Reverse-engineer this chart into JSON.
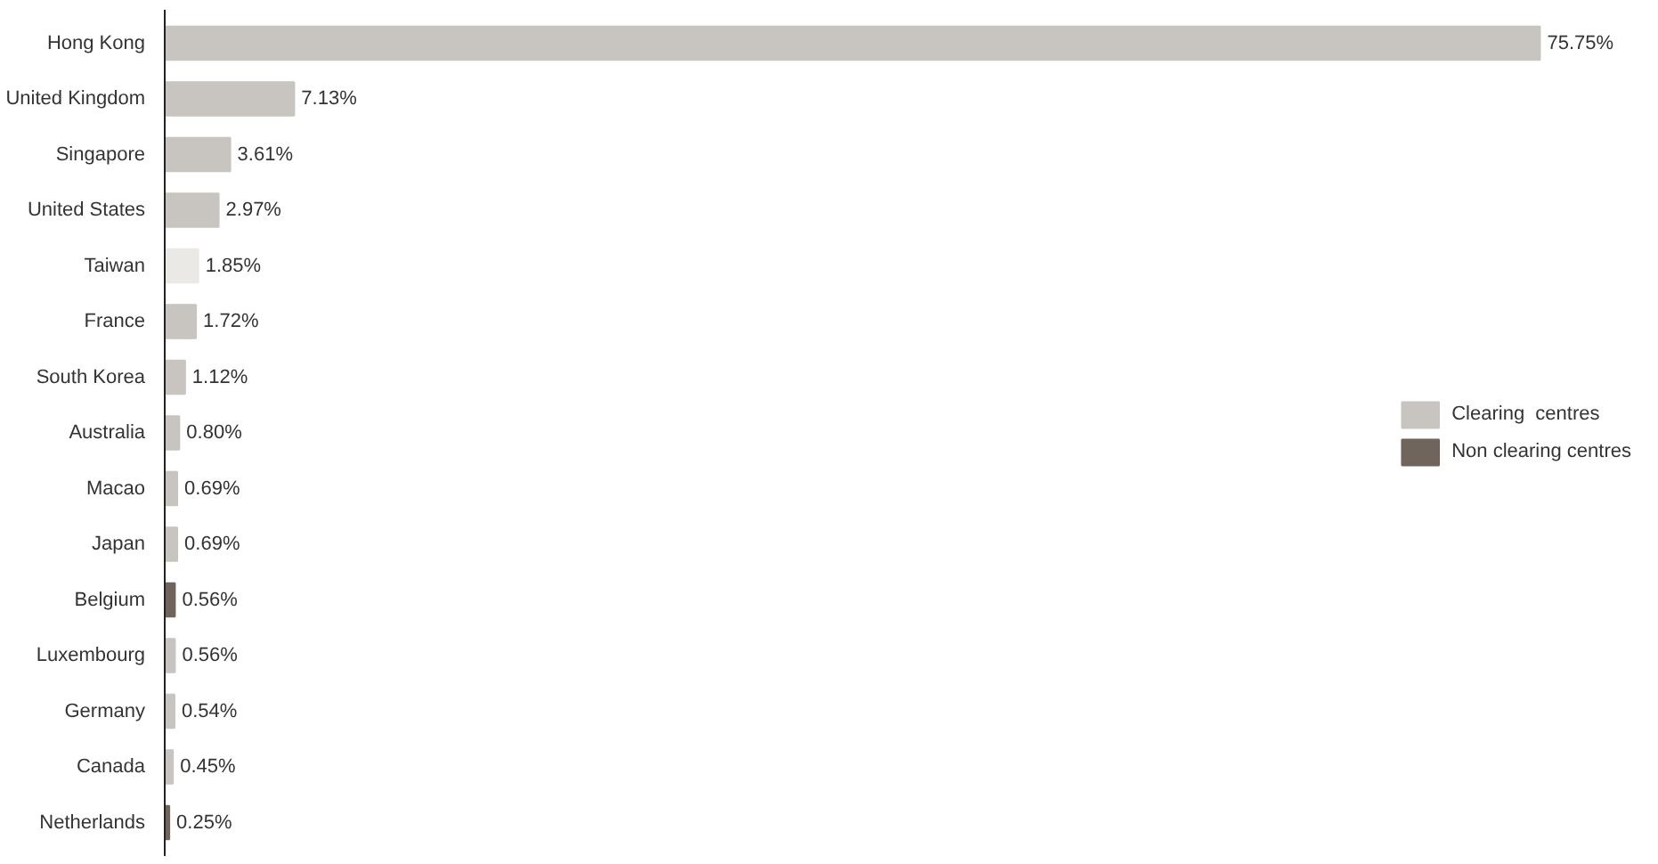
{
  "chart_data": {
    "type": "bar",
    "orientation": "horizontal",
    "categories": [
      "Hong Kong",
      "United Kingdom",
      "Singapore",
      "United States",
      "Taiwan",
      "France",
      "South Korea",
      "Australia",
      "Macao",
      "Japan",
      "Belgium",
      "Luxembourg",
      "Germany",
      "Canada",
      "Netherlands"
    ],
    "series": [
      {
        "name": "Clearing  centres",
        "color": "#c8c4bf",
        "values": [
          75.75,
          7.13,
          3.61,
          2.97,
          null,
          1.72,
          1.12,
          0.8,
          0.69,
          0.69,
          null,
          0.56,
          0.54,
          0.45,
          null
        ],
        "value_labels": [
          "75.75%",
          "7.13%",
          "3.61%",
          "2.97%",
          null,
          "1.72%",
          "1.12%",
          "0.80%",
          "0.69%",
          "0.69%",
          null,
          "0.56%",
          "0.54%",
          "0.45%",
          null
        ]
      },
      {
        "name": "Non clearing centres",
        "color": "#6f655d",
        "values": [
          null,
          null,
          null,
          null,
          null,
          null,
          null,
          null,
          null,
          null,
          0.56,
          null,
          null,
          null,
          0.25
        ],
        "value_labels": [
          null,
          null,
          null,
          null,
          null,
          null,
          null,
          null,
          null,
          null,
          "0.56%",
          null,
          null,
          null,
          "0.25%"
        ]
      },
      {
        "color": "#ebe9e6",
        "values": [
          null,
          null,
          null,
          null,
          1.85,
          null,
          null,
          null,
          null,
          null,
          null,
          null,
          null,
          null,
          null
        ],
        "value_labels": [
          null,
          null,
          null,
          null,
          "1.85%",
          null,
          null,
          null,
          null,
          null,
          null,
          null,
          null,
          null,
          null
        ]
      }
    ],
    "legend": "right",
    "grid": false
  }
}
